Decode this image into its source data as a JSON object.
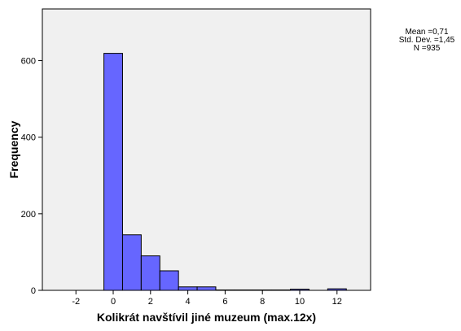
{
  "chart_data": {
    "type": "bar",
    "title": "",
    "xlabel": "Kolikrát navštívil jiné muzeum (max.12x)",
    "ylabel": "Frequency",
    "xlim": [
      -3.8,
      13.8
    ],
    "ylim": [
      0,
      735
    ],
    "x_ticks": [
      -2,
      0,
      2,
      4,
      6,
      8,
      10,
      12
    ],
    "y_ticks": [
      0,
      200,
      400,
      600
    ],
    "bin_width": 1,
    "bins": [
      {
        "center": 0,
        "count": 619
      },
      {
        "center": 1,
        "count": 145
      },
      {
        "center": 2,
        "count": 90
      },
      {
        "center": 3,
        "count": 51
      },
      {
        "center": 4,
        "count": 9
      },
      {
        "center": 5,
        "count": 9
      },
      {
        "center": 6,
        "count": 1
      },
      {
        "center": 7,
        "count": 1
      },
      {
        "center": 8,
        "count": 1
      },
      {
        "center": 9,
        "count": 1
      },
      {
        "center": 10,
        "count": 3
      },
      {
        "center": 11,
        "count": 0
      },
      {
        "center": 12,
        "count": 4
      }
    ],
    "stats": [
      "Mean =0,71",
      "Std. Dev. =1,45",
      "N =935"
    ],
    "grid": false,
    "colors": {
      "bar_fill": "#6666ff",
      "bar_stroke": "#000000",
      "plot_background": "#f0f0f0"
    }
  }
}
